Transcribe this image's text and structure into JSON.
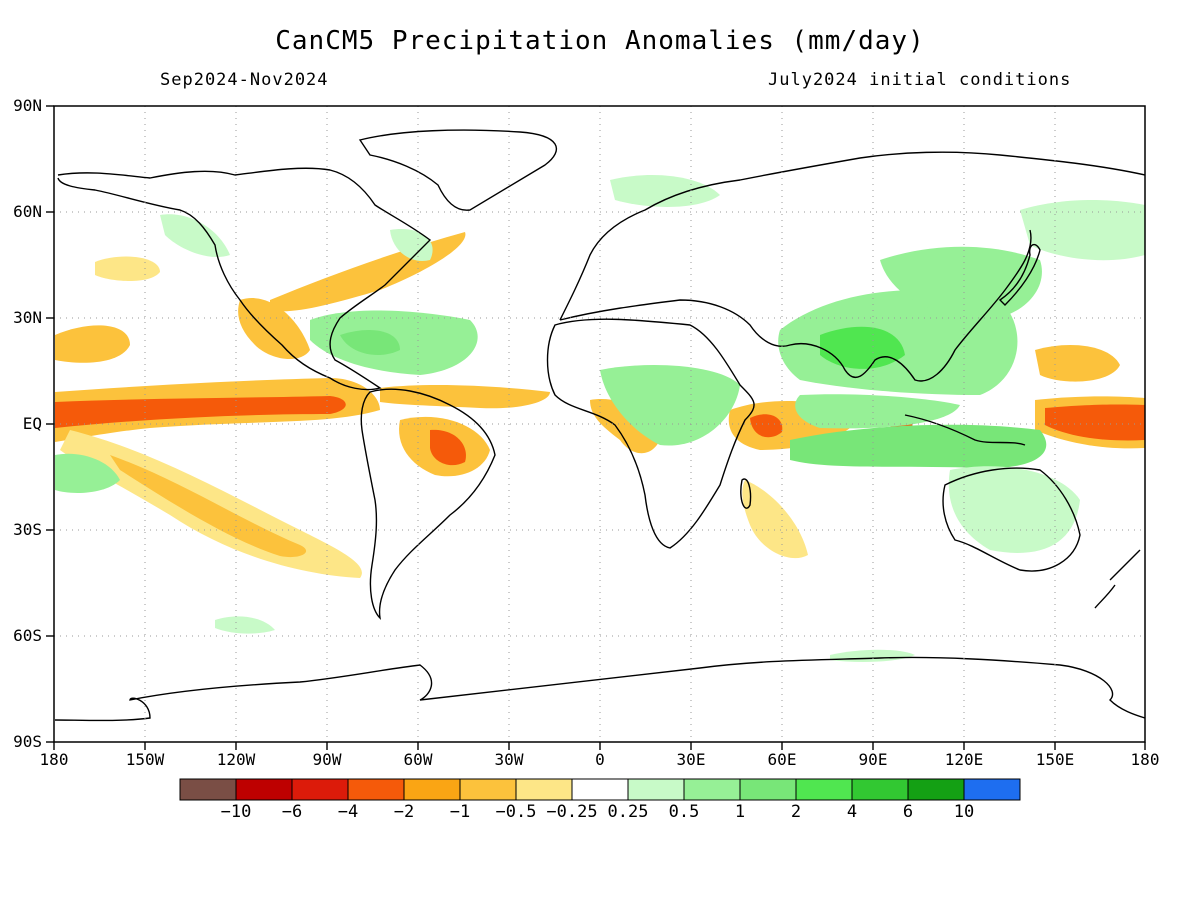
{
  "title": "CanCM5 Precipitation Anomalies (mm/day)",
  "subtitle_left": "Sep2024-Nov2024",
  "subtitle_right": "July2024 initial conditions",
  "lat_labels": [
    "90N",
    "60N",
    "30N",
    "EQ",
    "30S",
    "60S",
    "90S"
  ],
  "lon_labels": [
    "180",
    "150W",
    "120W",
    "90W",
    "60W",
    "30W",
    "0",
    "30E",
    "60E",
    "90E",
    "120E",
    "150E",
    "180"
  ],
  "colorbar": {
    "colors": [
      "#7a4e45",
      "#be0000",
      "#dc1b0a",
      "#f55a0a",
      "#faa514",
      "#fcc23c",
      "#fde687",
      "#ffffff",
      "#c8fac8",
      "#96f096",
      "#78e678",
      "#50e650",
      "#32c832",
      "#14a014",
      "#1e6ef0"
    ],
    "labels": [
      "−10",
      "−6",
      "−4",
      "−2",
      "−1",
      "−0.5",
      "−0.25",
      "0.25",
      "0.5",
      "1",
      "2",
      "4",
      "6",
      "10"
    ]
  },
  "map_styles": {
    "dry_light": "#fde687",
    "dry_mid": "#fcc23c",
    "dry_strong": "#faa514",
    "dry_stronger": "#f55a0a",
    "wet_light": "#c8fac8",
    "wet_mid": "#96f096",
    "wet_strong": "#50e650"
  }
}
